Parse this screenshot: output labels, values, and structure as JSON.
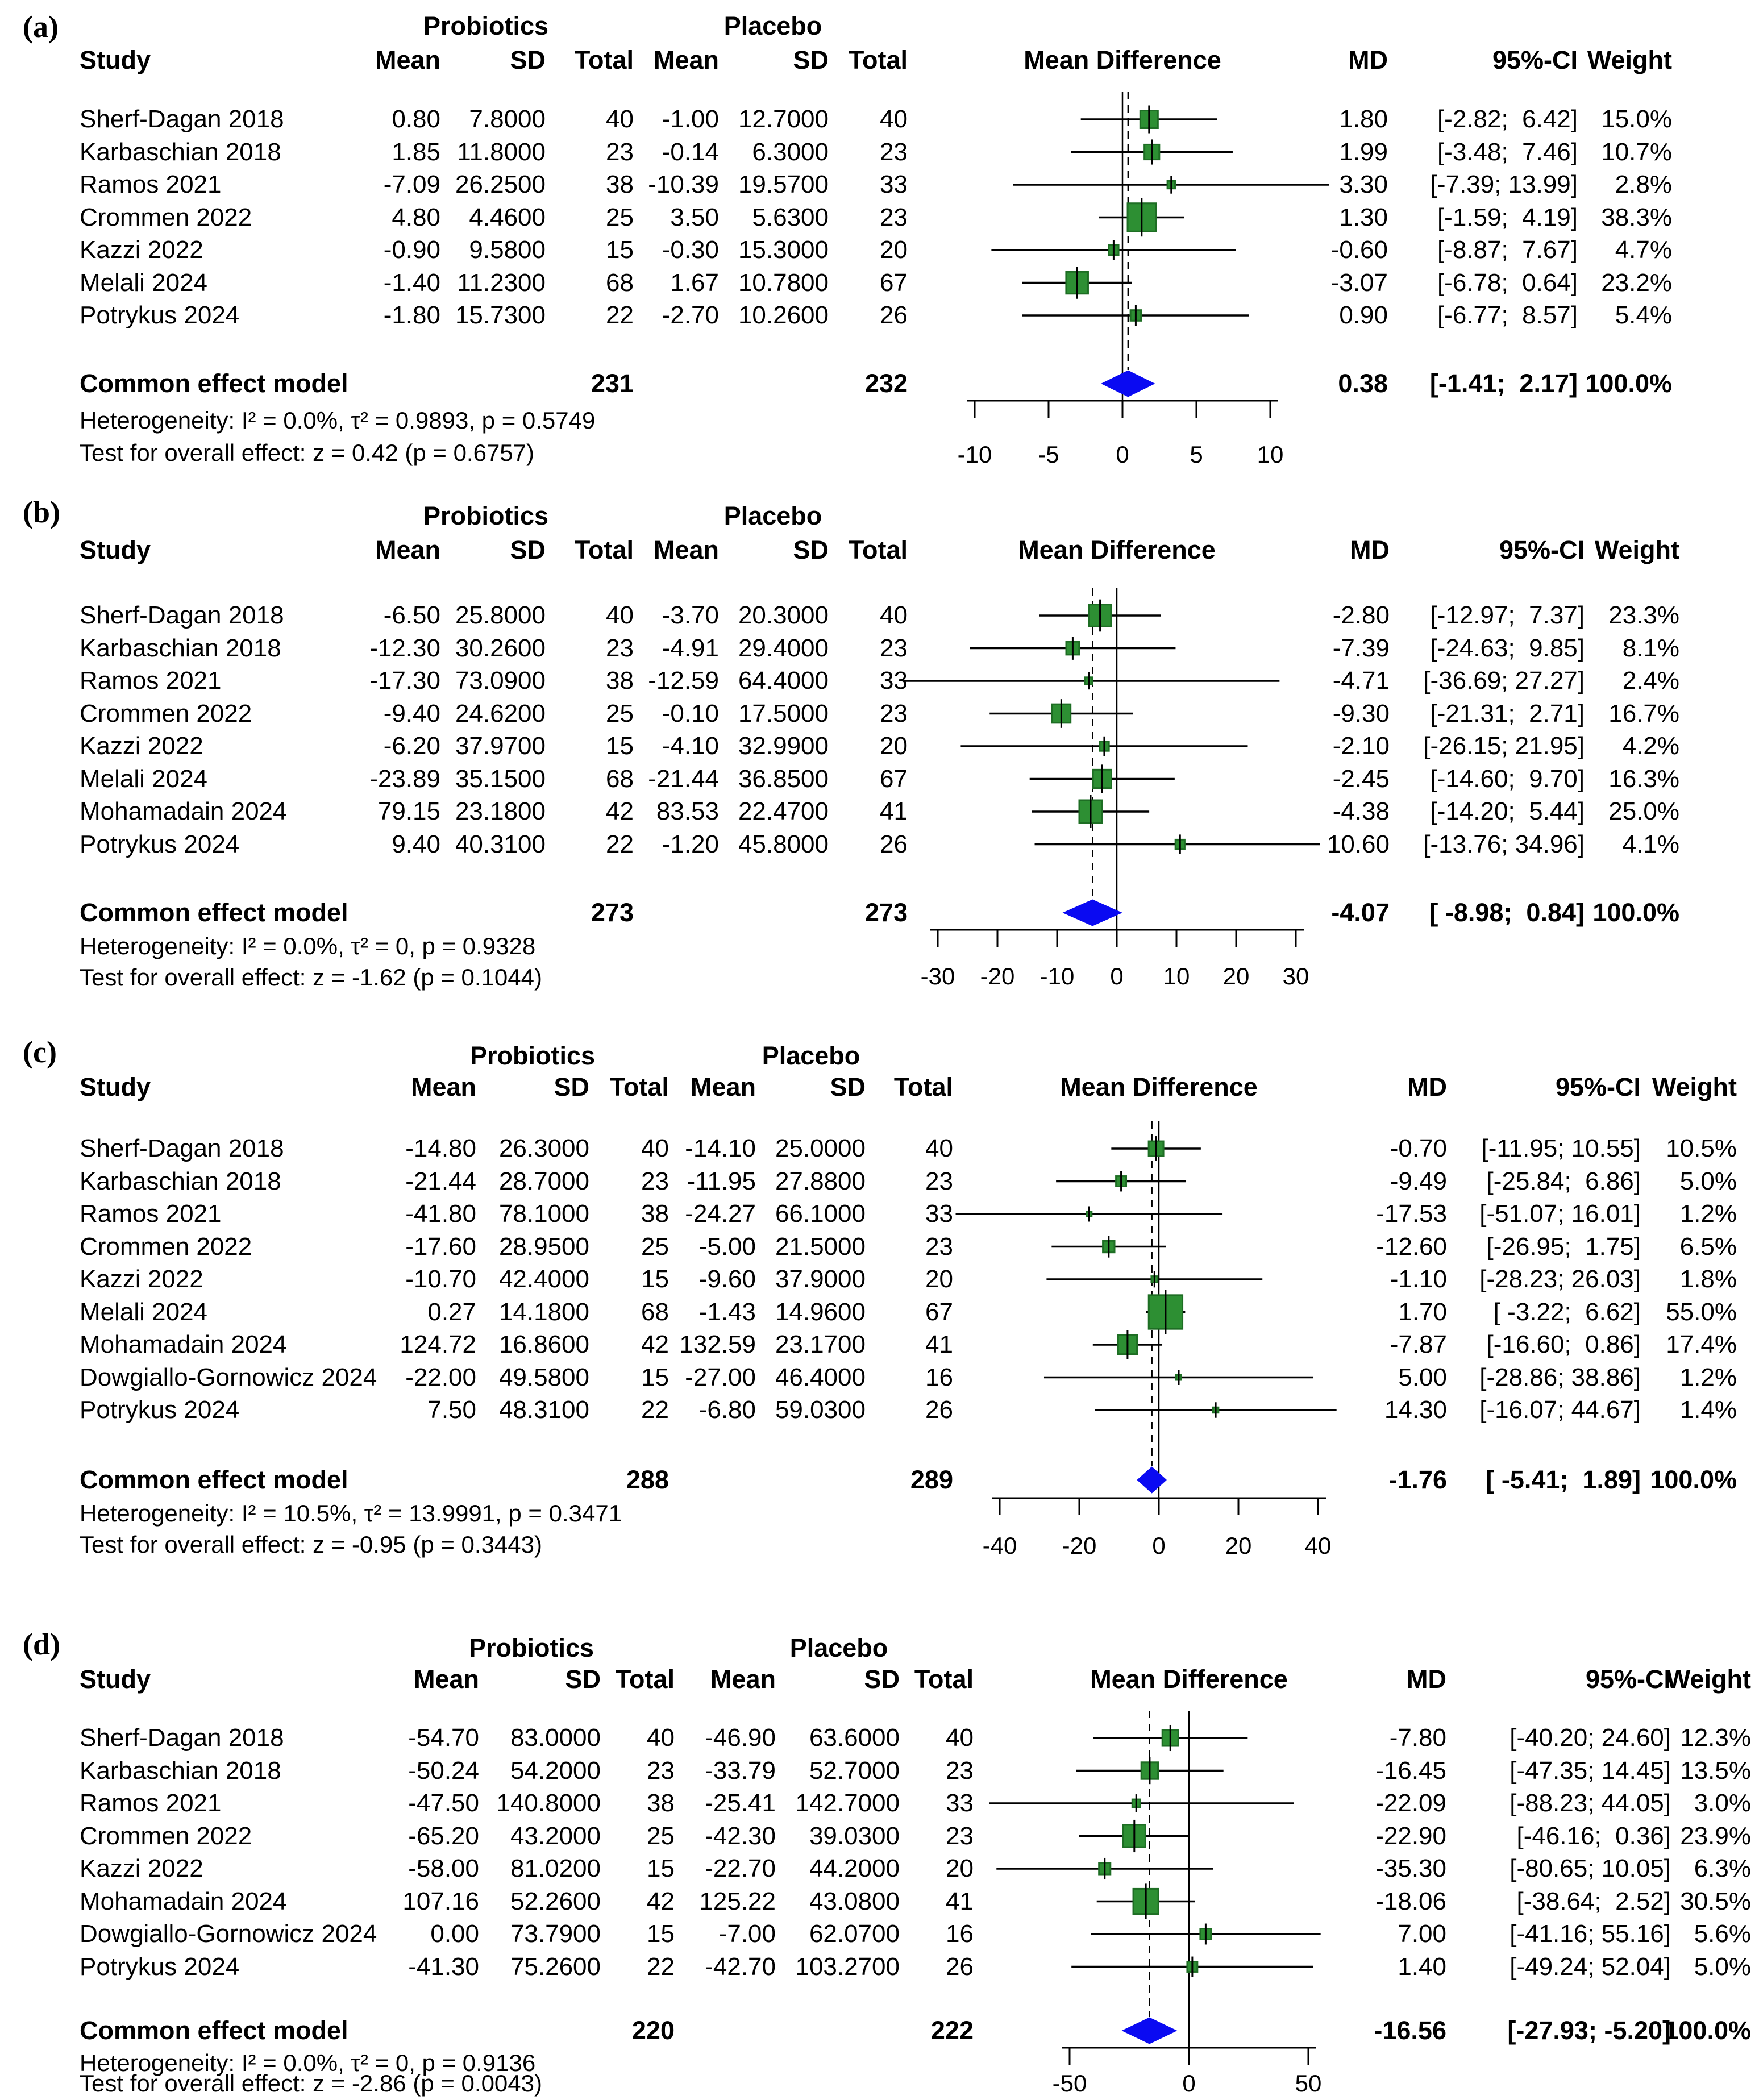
{
  "colors": {
    "square_fill": "#2d8f33",
    "square_border": "#1e6e24",
    "diamond_fill": "#0a0af2",
    "line": "#000000",
    "background": "#ffffff"
  },
  "chart_data": [
    {
      "type": "forest",
      "panel": "(a)",
      "group_headers": [
        "Probiotics",
        "Placebo"
      ],
      "column_headers": [
        "Study",
        "Mean",
        "SD",
        "Total",
        "Mean",
        "SD",
        "Total",
        "Mean Difference",
        "MD",
        "95%-CI",
        "Weight"
      ],
      "studies": [
        {
          "study": "Sherf-Dagan 2018",
          "mean1": "0.80",
          "sd1": "7.8000",
          "n1": "40",
          "mean2": "-1.00",
          "sd2": "12.7000",
          "n2": "40",
          "md": 1.8,
          "lo": -2.82,
          "hi": 6.42,
          "weight": 15.0,
          "md_text": "1.80",
          "ci_text": "[-2.82;  6.42]",
          "weight_text": "15.0%"
        },
        {
          "study": "Karbaschian 2018",
          "mean1": "1.85",
          "sd1": "11.8000",
          "n1": "23",
          "mean2": "-0.14",
          "sd2": "6.3000",
          "n2": "23",
          "md": 1.99,
          "lo": -3.48,
          "hi": 7.46,
          "weight": 10.7,
          "md_text": "1.99",
          "ci_text": "[-3.48;  7.46]",
          "weight_text": "10.7%"
        },
        {
          "study": "Ramos 2021",
          "mean1": "-7.09",
          "sd1": "26.2500",
          "n1": "38",
          "mean2": "-10.39",
          "sd2": "19.5700",
          "n2": "33",
          "md": 3.3,
          "lo": -7.39,
          "hi": 13.99,
          "weight": 2.8,
          "md_text": "3.30",
          "ci_text": "[-7.39; 13.99]",
          "weight_text": "2.8%"
        },
        {
          "study": "Crommen 2022",
          "mean1": "4.80",
          "sd1": "4.4600",
          "n1": "25",
          "mean2": "3.50",
          "sd2": "5.6300",
          "n2": "23",
          "md": 1.3,
          "lo": -1.59,
          "hi": 4.19,
          "weight": 38.3,
          "md_text": "1.30",
          "ci_text": "[-1.59;  4.19]",
          "weight_text": "38.3%"
        },
        {
          "study": "Kazzi 2022",
          "mean1": "-0.90",
          "sd1": "9.5800",
          "n1": "15",
          "mean2": "-0.30",
          "sd2": "15.3000",
          "n2": "20",
          "md": -0.6,
          "lo": -8.87,
          "hi": 7.67,
          "weight": 4.7,
          "md_text": "-0.60",
          "ci_text": "[-8.87;  7.67]",
          "weight_text": "4.7%"
        },
        {
          "study": "Melali 2024",
          "mean1": "-1.40",
          "sd1": "11.2300",
          "n1": "68",
          "mean2": "1.67",
          "sd2": "10.7800",
          "n2": "67",
          "md": -3.07,
          "lo": -6.78,
          "hi": 0.64,
          "weight": 23.2,
          "md_text": "-3.07",
          "ci_text": "[-6.78;  0.64]",
          "weight_text": "23.2%"
        },
        {
          "study": "Potrykus 2024",
          "mean1": "-1.80",
          "sd1": "15.7300",
          "n1": "22",
          "mean2": "-2.70",
          "sd2": "10.2600",
          "n2": "26",
          "md": 0.9,
          "lo": -6.77,
          "hi": 8.57,
          "weight": 5.4,
          "md_text": "0.90",
          "ci_text": "[-6.77;  8.57]",
          "weight_text": "5.4%"
        }
      ],
      "summary": {
        "label": "Common effect model",
        "n1": "231",
        "n2": "232",
        "md": 0.38,
        "lo": -1.41,
        "hi": 2.17,
        "md_text": "0.38",
        "ci_text": "[-1.41;  2.17]",
        "weight_text": "100.0%"
      },
      "heterogeneity": "Heterogeneity: I² = 0.0%, τ² = 0.9893, p = 0.5749",
      "overall_test": "Test for overall effect: z = 0.42 (p = 0.6757)",
      "axis_ticks": [
        -10,
        -5,
        0,
        5,
        10
      ],
      "axis_range": [
        -10,
        10
      ]
    },
    {
      "type": "forest",
      "panel": "(b)",
      "group_headers": [
        "Probiotics",
        "Placebo"
      ],
      "column_headers": [
        "Study",
        "Mean",
        "SD",
        "Total",
        "Mean",
        "SD",
        "Total",
        "Mean Difference",
        "MD",
        "95%-CI",
        "Weight"
      ],
      "studies": [
        {
          "study": "Sherf-Dagan 2018",
          "mean1": "-6.50",
          "sd1": "25.8000",
          "n1": "40",
          "mean2": "-3.70",
          "sd2": "20.3000",
          "n2": "40",
          "md": -2.8,
          "lo": -12.97,
          "hi": 7.37,
          "weight": 23.3,
          "md_text": "-2.80",
          "ci_text": "[-12.97;  7.37]",
          "weight_text": "23.3%"
        },
        {
          "study": "Karbaschian 2018",
          "mean1": "-12.30",
          "sd1": "30.2600",
          "n1": "23",
          "mean2": "-4.91",
          "sd2": "29.4000",
          "n2": "23",
          "md": -7.39,
          "lo": -24.63,
          "hi": 9.85,
          "weight": 8.1,
          "md_text": "-7.39",
          "ci_text": "[-24.63;  9.85]",
          "weight_text": "8.1%"
        },
        {
          "study": "Ramos 2021",
          "mean1": "-17.30",
          "sd1": "73.0900",
          "n1": "38",
          "mean2": "-12.59",
          "sd2": "64.4000",
          "n2": "33",
          "md": -4.71,
          "lo": -36.69,
          "hi": 27.27,
          "weight": 2.4,
          "md_text": "-4.71",
          "ci_text": "[-36.69; 27.27]",
          "weight_text": "2.4%"
        },
        {
          "study": "Crommen 2022",
          "mean1": "-9.40",
          "sd1": "24.6200",
          "n1": "25",
          "mean2": "-0.10",
          "sd2": "17.5000",
          "n2": "23",
          "md": -9.3,
          "lo": -21.31,
          "hi": 2.71,
          "weight": 16.7,
          "md_text": "-9.30",
          "ci_text": "[-21.31;  2.71]",
          "weight_text": "16.7%"
        },
        {
          "study": "Kazzi 2022",
          "mean1": "-6.20",
          "sd1": "37.9700",
          "n1": "15",
          "mean2": "-4.10",
          "sd2": "32.9900",
          "n2": "20",
          "md": -2.1,
          "lo": -26.15,
          "hi": 21.95,
          "weight": 4.2,
          "md_text": "-2.10",
          "ci_text": "[-26.15; 21.95]",
          "weight_text": "4.2%"
        },
        {
          "study": "Melali 2024",
          "mean1": "-23.89",
          "sd1": "35.1500",
          "n1": "68",
          "mean2": "-21.44",
          "sd2": "36.8500",
          "n2": "67",
          "md": -2.45,
          "lo": -14.6,
          "hi": 9.7,
          "weight": 16.3,
          "md_text": "-2.45",
          "ci_text": "[-14.60;  9.70]",
          "weight_text": "16.3%"
        },
        {
          "study": "Mohamadain 2024",
          "mean1": "79.15",
          "sd1": "23.1800",
          "n1": "42",
          "mean2": "83.53",
          "sd2": "22.4700",
          "n2": "41",
          "md": -4.38,
          "lo": -14.2,
          "hi": 5.44,
          "weight": 25.0,
          "md_text": "-4.38",
          "ci_text": "[-14.20;  5.44]",
          "weight_text": "25.0%"
        },
        {
          "study": "Potrykus 2024",
          "mean1": "9.40",
          "sd1": "40.3100",
          "n1": "22",
          "mean2": "-1.20",
          "sd2": "45.8000",
          "n2": "26",
          "md": 10.6,
          "lo": -13.76,
          "hi": 34.96,
          "weight": 4.1,
          "md_text": "10.60",
          "ci_text": "[-13.76; 34.96]",
          "weight_text": "4.1%"
        }
      ],
      "summary": {
        "label": "Common effect model",
        "n1": "273",
        "n2": "273",
        "md": -4.07,
        "lo": -8.98,
        "hi": 0.84,
        "md_text": "-4.07",
        "ci_text": "[ -8.98;  0.84]",
        "weight_text": "100.0%"
      },
      "heterogeneity": "Heterogeneity: I² = 0.0%, τ² = 0, p = 0.9328",
      "overall_test": "Test for overall effect: z = -1.62 (p = 0.1044)",
      "axis_ticks": [
        -30,
        -20,
        -10,
        0,
        10,
        20,
        30
      ],
      "axis_range": [
        -30,
        30
      ]
    },
    {
      "type": "forest",
      "panel": "(c)",
      "group_headers": [
        "Probiotics",
        "Placebo"
      ],
      "column_headers": [
        "Study",
        "Mean",
        "SD",
        "Total",
        "Mean",
        "SD",
        "Total",
        "Mean Difference",
        "MD",
        "95%-CI",
        "Weight"
      ],
      "studies": [
        {
          "study": "Sherf-Dagan 2018",
          "mean1": "-14.80",
          "sd1": "26.3000",
          "n1": "40",
          "mean2": "-14.10",
          "sd2": "25.0000",
          "n2": "40",
          "md": -0.7,
          "lo": -11.95,
          "hi": 10.55,
          "weight": 10.5,
          "md_text": "-0.70",
          "ci_text": "[-11.95; 10.55]",
          "weight_text": "10.5%"
        },
        {
          "study": "Karbaschian 2018",
          "mean1": "-21.44",
          "sd1": "28.7000",
          "n1": "23",
          "mean2": "-11.95",
          "sd2": "27.8800",
          "n2": "23",
          "md": -9.49,
          "lo": -25.84,
          "hi": 6.86,
          "weight": 5.0,
          "md_text": "-9.49",
          "ci_text": "[-25.84;  6.86]",
          "weight_text": "5.0%"
        },
        {
          "study": "Ramos 2021",
          "mean1": "-41.80",
          "sd1": "78.1000",
          "n1": "38",
          "mean2": "-24.27",
          "sd2": "66.1000",
          "n2": "33",
          "md": -17.53,
          "lo": -51.07,
          "hi": 16.01,
          "weight": 1.2,
          "md_text": "-17.53",
          "ci_text": "[-51.07; 16.01]",
          "weight_text": "1.2%"
        },
        {
          "study": "Crommen 2022",
          "mean1": "-17.60",
          "sd1": "28.9500",
          "n1": "25",
          "mean2": "-5.00",
          "sd2": "21.5000",
          "n2": "23",
          "md": -12.6,
          "lo": -26.95,
          "hi": 1.75,
          "weight": 6.5,
          "md_text": "-12.60",
          "ci_text": "[-26.95;  1.75]",
          "weight_text": "6.5%"
        },
        {
          "study": "Kazzi 2022",
          "mean1": "-10.70",
          "sd1": "42.4000",
          "n1": "15",
          "mean2": "-9.60",
          "sd2": "37.9000",
          "n2": "20",
          "md": -1.1,
          "lo": -28.23,
          "hi": 26.03,
          "weight": 1.8,
          "md_text": "-1.10",
          "ci_text": "[-28.23; 26.03]",
          "weight_text": "1.8%"
        },
        {
          "study": "Melali 2024",
          "mean1": "0.27",
          "sd1": "14.1800",
          "n1": "68",
          "mean2": "-1.43",
          "sd2": "14.9600",
          "n2": "67",
          "md": 1.7,
          "lo": -3.22,
          "hi": 6.62,
          "weight": 55.0,
          "md_text": "1.70",
          "ci_text": "[ -3.22;  6.62]",
          "weight_text": "55.0%"
        },
        {
          "study": "Mohamadain 2024",
          "mean1": "124.72",
          "sd1": "16.8600",
          "n1": "42",
          "mean2": "132.59",
          "sd2": "23.1700",
          "n2": "41",
          "md": -7.87,
          "lo": -16.6,
          "hi": 0.86,
          "weight": 17.4,
          "md_text": "-7.87",
          "ci_text": "[-16.60;  0.86]",
          "weight_text": "17.4%"
        },
        {
          "study": "Dowgiallo-Gornowicz 2024",
          "mean1": "-22.00",
          "sd1": "49.5800",
          "n1": "15",
          "mean2": "-27.00",
          "sd2": "46.4000",
          "n2": "16",
          "md": 5.0,
          "lo": -28.86,
          "hi": 38.86,
          "weight": 1.2,
          "md_text": "5.00",
          "ci_text": "[-28.86; 38.86]",
          "weight_text": "1.2%"
        },
        {
          "study": "Potrykus 2024",
          "mean1": "7.50",
          "sd1": "48.3100",
          "n1": "22",
          "mean2": "-6.80",
          "sd2": "59.0300",
          "n2": "26",
          "md": 14.3,
          "lo": -16.07,
          "hi": 44.67,
          "weight": 1.4,
          "md_text": "14.30",
          "ci_text": "[-16.07; 44.67]",
          "weight_text": "1.4%"
        }
      ],
      "summary": {
        "label": "Common effect model",
        "n1": "288",
        "n2": "289",
        "md": -1.76,
        "lo": -5.41,
        "hi": 1.89,
        "md_text": "-1.76",
        "ci_text": "[ -5.41;  1.89]",
        "weight_text": "100.0%"
      },
      "heterogeneity": "Heterogeneity: I² = 10.5%, τ² = 13.9991, p = 0.3471",
      "overall_test": "Test for overall effect: z = -0.95 (p = 0.3443)",
      "axis_ticks": [
        -40,
        -20,
        0,
        20,
        40
      ],
      "axis_range": [
        -40,
        40
      ]
    },
    {
      "type": "forest",
      "panel": "(d)",
      "group_headers": [
        "Probiotics",
        "Placebo"
      ],
      "column_headers": [
        "Study",
        "Mean",
        "SD",
        "Total",
        "Mean",
        "SD",
        "Total",
        "Mean Difference",
        "MD",
        "95%-CI",
        "Weight"
      ],
      "studies": [
        {
          "study": "Sherf-Dagan 2018",
          "mean1": "-54.70",
          "sd1": "83.0000",
          "n1": "40",
          "mean2": "-46.90",
          "sd2": "63.6000",
          "n2": "40",
          "md": -7.8,
          "lo": -40.2,
          "hi": 24.6,
          "weight": 12.3,
          "md_text": "-7.80",
          "ci_text": "[-40.20; 24.60]",
          "weight_text": "12.3%"
        },
        {
          "study": "Karbaschian 2018",
          "mean1": "-50.24",
          "sd1": "54.2000",
          "n1": "23",
          "mean2": "-33.79",
          "sd2": "52.7000",
          "n2": "23",
          "md": -16.45,
          "lo": -47.35,
          "hi": 14.45,
          "weight": 13.5,
          "md_text": "-16.45",
          "ci_text": "[-47.35; 14.45]",
          "weight_text": "13.5%"
        },
        {
          "study": "Ramos 2021",
          "mean1": "-47.50",
          "sd1": "140.8000",
          "n1": "38",
          "mean2": "-25.41",
          "sd2": "142.7000",
          "n2": "33",
          "md": -22.09,
          "lo": -88.23,
          "hi": 44.05,
          "weight": 3.0,
          "md_text": "-22.09",
          "ci_text": "[-88.23; 44.05]",
          "weight_text": "3.0%"
        },
        {
          "study": "Crommen 2022",
          "mean1": "-65.20",
          "sd1": "43.2000",
          "n1": "25",
          "mean2": "-42.30",
          "sd2": "39.0300",
          "n2": "23",
          "md": -22.9,
          "lo": -46.16,
          "hi": 0.36,
          "weight": 23.9,
          "md_text": "-22.90",
          "ci_text": "[-46.16;  0.36]",
          "weight_text": "23.9%"
        },
        {
          "study": "Kazzi 2022",
          "mean1": "-58.00",
          "sd1": "81.0200",
          "n1": "15",
          "mean2": "-22.70",
          "sd2": "44.2000",
          "n2": "20",
          "md": -35.3,
          "lo": -80.65,
          "hi": 10.05,
          "weight": 6.3,
          "md_text": "-35.30",
          "ci_text": "[-80.65; 10.05]",
          "weight_text": "6.3%"
        },
        {
          "study": "Mohamadain 2024",
          "mean1": "107.16",
          "sd1": "52.2600",
          "n1": "42",
          "mean2": "125.22",
          "sd2": "43.0800",
          "n2": "41",
          "md": -18.06,
          "lo": -38.64,
          "hi": 2.52,
          "weight": 30.5,
          "md_text": "-18.06",
          "ci_text": "[-38.64;  2.52]",
          "weight_text": "30.5%"
        },
        {
          "study": "Dowgiallo-Gornowicz 2024",
          "mean1": "0.00",
          "sd1": "73.7900",
          "n1": "15",
          "mean2": "-7.00",
          "sd2": "62.0700",
          "n2": "16",
          "md": 7.0,
          "lo": -41.16,
          "hi": 55.16,
          "weight": 5.6,
          "md_text": "7.00",
          "ci_text": "[-41.16; 55.16]",
          "weight_text": "5.6%"
        },
        {
          "study": "Potrykus 2024",
          "mean1": "-41.30",
          "sd1": "75.2600",
          "n1": "22",
          "mean2": "-42.70",
          "sd2": "103.2700",
          "n2": "26",
          "md": 1.4,
          "lo": -49.24,
          "hi": 52.04,
          "weight": 5.0,
          "md_text": "1.40",
          "ci_text": "[-49.24; 52.04]",
          "weight_text": "5.0%"
        }
      ],
      "summary": {
        "label": "Common effect model",
        "n1": "220",
        "n2": "222",
        "md": -16.56,
        "lo": -27.93,
        "hi": -5.2,
        "md_text": "-16.56",
        "ci_text": "[-27.93; -5.20]",
        "weight_text": "100.0%"
      },
      "heterogeneity": "Heterogeneity: I² = 0.0%, τ² = 0, p = 0.9136",
      "overall_test": "Test for overall effect: z = -2.86 (p = 0.0043)",
      "axis_ticks": [
        -50,
        0,
        50
      ],
      "axis_range": [
        -50,
        50
      ]
    }
  ]
}
